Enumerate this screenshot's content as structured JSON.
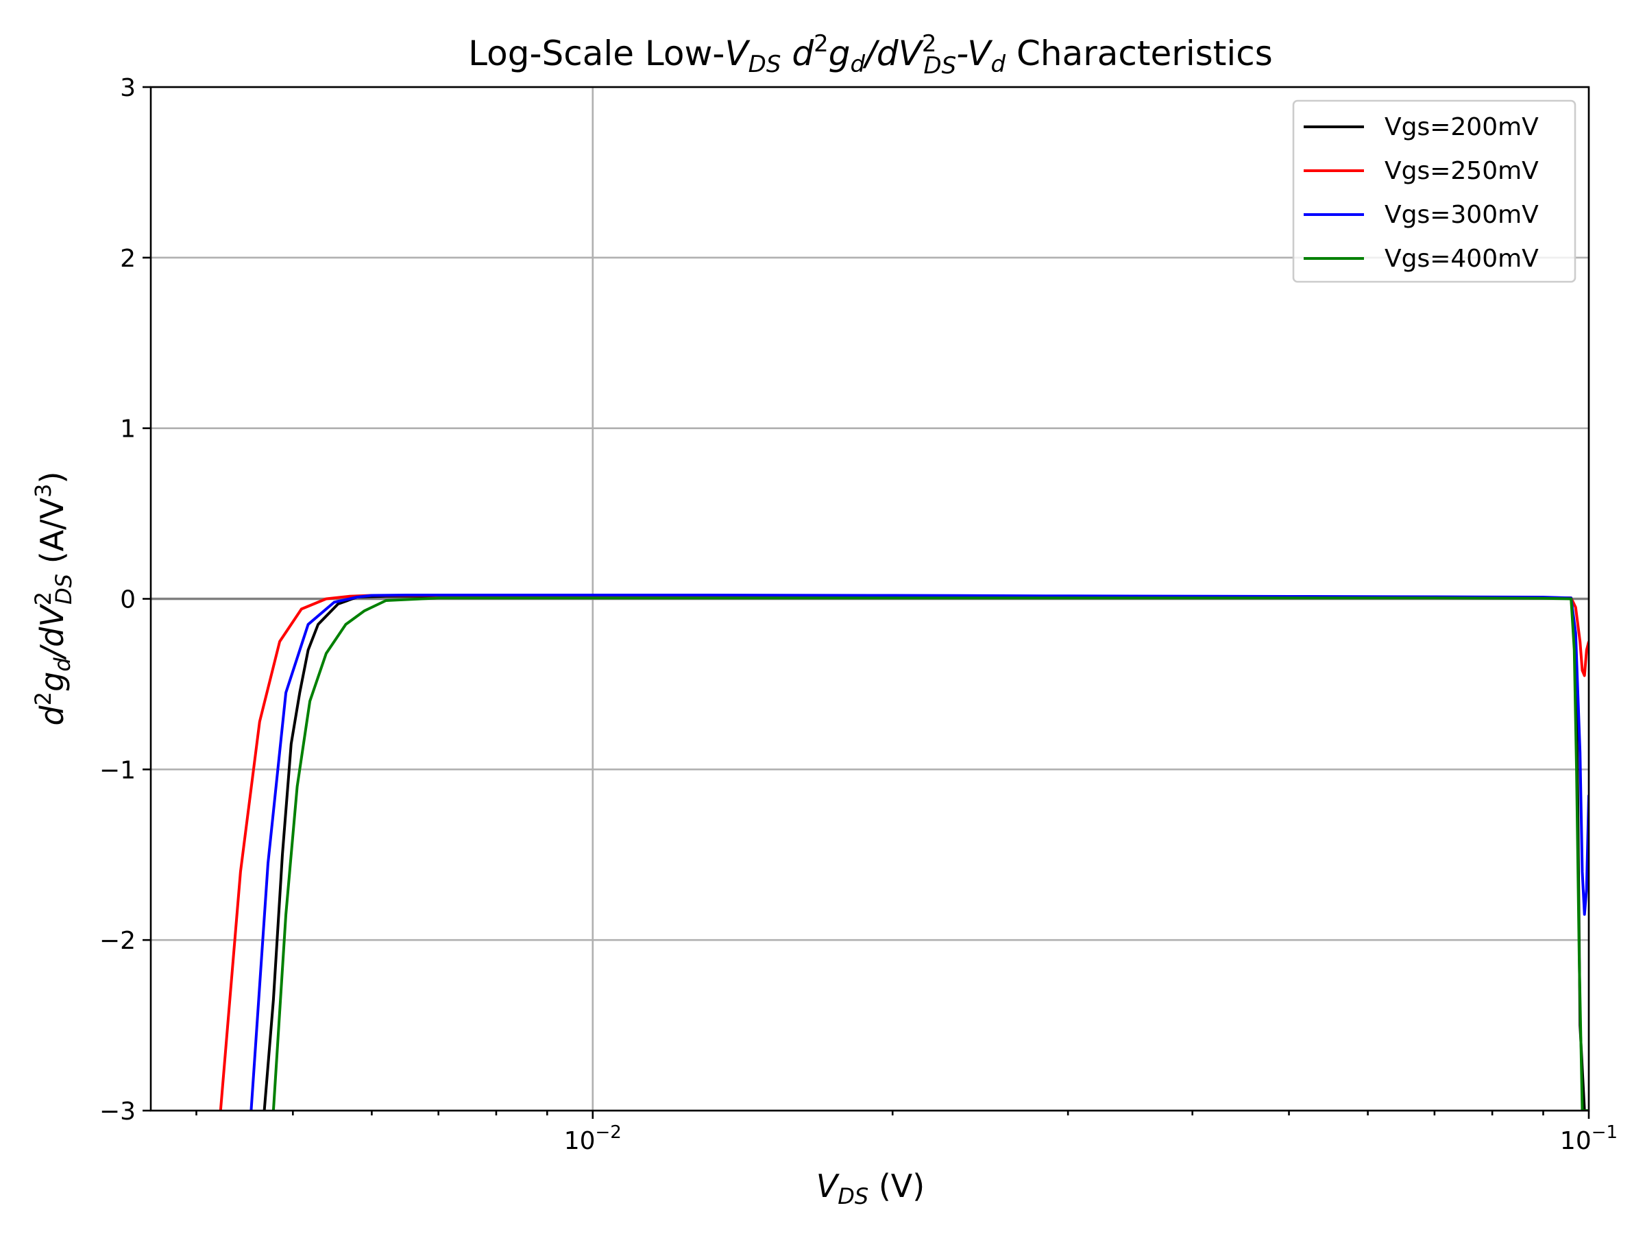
{
  "chart_data": {
    "type": "line",
    "title": {
      "prefix": "Log-Scale Low-",
      "vds_base": "V",
      "vds_sub": "DS",
      "d": "d",
      "d_sup": "2",
      "g": "g",
      "g_sub": "d",
      "slash_dv": "/dV",
      "dv_sup": "2",
      "dv_sub": "DS",
      "dash_v": "-V",
      "v_sub": "d",
      "suffix": " Characteristics"
    },
    "xlabel": {
      "base": "V",
      "sub": "DS",
      "unit": " (V)"
    },
    "ylabel": {
      "d": "d",
      "d_sup": "2",
      "g": "g",
      "g_sub": "d",
      "slash_dv": "/dV",
      "dv_sup": "2",
      "dv_sub": "DS",
      "unit_open": " (A/V",
      "unit_sup": "3",
      "unit_close": ")"
    },
    "x_scale": "log",
    "xlim": [
      0.0036,
      0.1
    ],
    "ylim": [
      -3,
      3
    ],
    "x_major_ticks": [
      {
        "value": 0.01,
        "base": "10",
        "exp": "−2"
      },
      {
        "value": 0.1,
        "base": "10",
        "exp": "−1"
      }
    ],
    "x_minor_ticks": [
      0.004,
      0.005,
      0.006,
      0.007,
      0.008,
      0.009,
      0.02,
      0.03,
      0.04,
      0.05,
      0.06,
      0.07,
      0.08,
      0.09
    ],
    "y_ticks": [
      {
        "value": 3,
        "label": "3"
      },
      {
        "value": 2,
        "label": "2"
      },
      {
        "value": 1,
        "label": "1"
      },
      {
        "value": 0,
        "label": "0"
      },
      {
        "value": -1,
        "label": "−1"
      },
      {
        "value": -2,
        "label": "−2"
      },
      {
        "value": -3,
        "label": "−3"
      }
    ],
    "grid": true,
    "zero_line": true,
    "legend_position": "top-right",
    "series": [
      {
        "name": "Vgs=200mV",
        "color": "#000000",
        "x": [
          0.00468,
          0.00478,
          0.00488,
          0.00498,
          0.00508,
          0.00518,
          0.0053,
          0.00555,
          0.0058,
          0.0062,
          0.007,
          0.008,
          0.01,
          0.013,
          0.02,
          0.03,
          0.05,
          0.07,
          0.09,
          0.096,
          0.097,
          0.0975,
          0.098,
          0.099,
          0.1
        ],
        "y": [
          -3.0,
          -2.35,
          -1.5,
          -0.85,
          -0.55,
          -0.3,
          -0.15,
          -0.03,
          0.01,
          0.015,
          0.015,
          0.015,
          0.015,
          0.015,
          0.013,
          0.012,
          0.01,
          0.008,
          0.006,
          0.005,
          -0.3,
          -1.2,
          -2.5,
          -3.0,
          -3.0
        ]
      },
      {
        "name": "Vgs=250mV",
        "color": "#ff0000",
        "x": [
          0.00423,
          0.00443,
          0.00463,
          0.00485,
          0.0051,
          0.0054,
          0.0057,
          0.006,
          0.0065,
          0.008,
          0.01,
          0.013,
          0.02,
          0.03,
          0.05,
          0.07,
          0.09,
          0.096,
          0.097,
          0.098,
          0.0985,
          0.099,
          0.0995,
          0.1
        ],
        "y": [
          -3.0,
          -1.6,
          -0.72,
          -0.25,
          -0.06,
          0.0,
          0.015,
          0.02,
          0.02,
          0.02,
          0.02,
          0.02,
          0.018,
          0.015,
          0.012,
          0.01,
          0.008,
          0.005,
          -0.05,
          -0.25,
          -0.42,
          -0.45,
          -0.3,
          -0.25
        ]
      },
      {
        "name": "Vgs=300mV",
        "color": "#0000ff",
        "x": [
          0.00454,
          0.00472,
          0.00492,
          0.00518,
          0.0055,
          0.0058,
          0.006,
          0.0065,
          0.008,
          0.01,
          0.013,
          0.02,
          0.03,
          0.05,
          0.07,
          0.09,
          0.096,
          0.097,
          0.098,
          0.0985,
          0.099,
          0.0995,
          0.1
        ],
        "y": [
          -3.0,
          -1.55,
          -0.55,
          -0.15,
          -0.02,
          0.01,
          0.02,
          0.022,
          0.022,
          0.022,
          0.022,
          0.02,
          0.017,
          0.014,
          0.012,
          0.01,
          0.005,
          -0.2,
          -0.9,
          -1.6,
          -1.85,
          -1.7,
          -1.15
        ]
      },
      {
        "name": "Vgs=400mV",
        "color": "#008000",
        "x": [
          0.00478,
          0.00492,
          0.00505,
          0.0052,
          0.0054,
          0.00565,
          0.0059,
          0.0062,
          0.007,
          0.008,
          0.01,
          0.013,
          0.02,
          0.03,
          0.05,
          0.07,
          0.09,
          0.096,
          0.0967,
          0.0972,
          0.0978,
          0.0985,
          0.1
        ],
        "y": [
          -3.0,
          -1.85,
          -1.1,
          -0.6,
          -0.32,
          -0.15,
          -0.07,
          -0.01,
          0.005,
          0.005,
          0.005,
          0.005,
          0.005,
          0.005,
          0.005,
          0.005,
          0.003,
          0.0,
          -0.3,
          -1.0,
          -2.1,
          -3.0,
          -3.0
        ]
      }
    ]
  }
}
